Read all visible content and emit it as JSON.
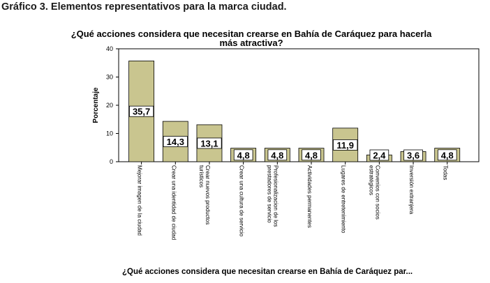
{
  "caption": "Gráfico 3. Elementos representativos para la marca ciudad.",
  "bottom_label": "¿Qué acciones considera que necesitan crearse en Bahía de Caráquez par...",
  "chart_data": {
    "type": "bar",
    "title": "¿Qué acciones considera que necesitan crearse en Bahía de Caráquez para hacerla más atractiva?",
    "ylabel": "Porcentaje",
    "xlabel": "¿Qué acciones considera que necesitan crearse en Bahía de Caráquez par...",
    "ylim": [
      0,
      40
    ],
    "yticks": [
      0,
      10,
      20,
      30,
      40
    ],
    "grid": false,
    "categories": [
      "Mejorar imagen de la ciudad",
      "Crear una identidad de ciudad",
      "Crear nuevos productos turísticos",
      "Crear una cultura de servicio",
      "Profesionalizacion de los prestadores de servicio",
      "Actividades permanentes",
      "Lugares de entretenimiento",
      "Convenios con socios estratégicos",
      "Inversión extranjera",
      "Todas"
    ],
    "values": [
      35.7,
      14.3,
      13.1,
      4.8,
      4.8,
      4.8,
      11.9,
      2.4,
      3.6,
      4.8
    ],
    "data_labels": [
      "35,7",
      "14,3",
      "13,1",
      "4,8",
      "4,8",
      "4,8",
      "11,9",
      "2,4",
      "3,6",
      "4,8"
    ],
    "bar_color": "#c9c58f",
    "plot_background": "#ffffff"
  }
}
